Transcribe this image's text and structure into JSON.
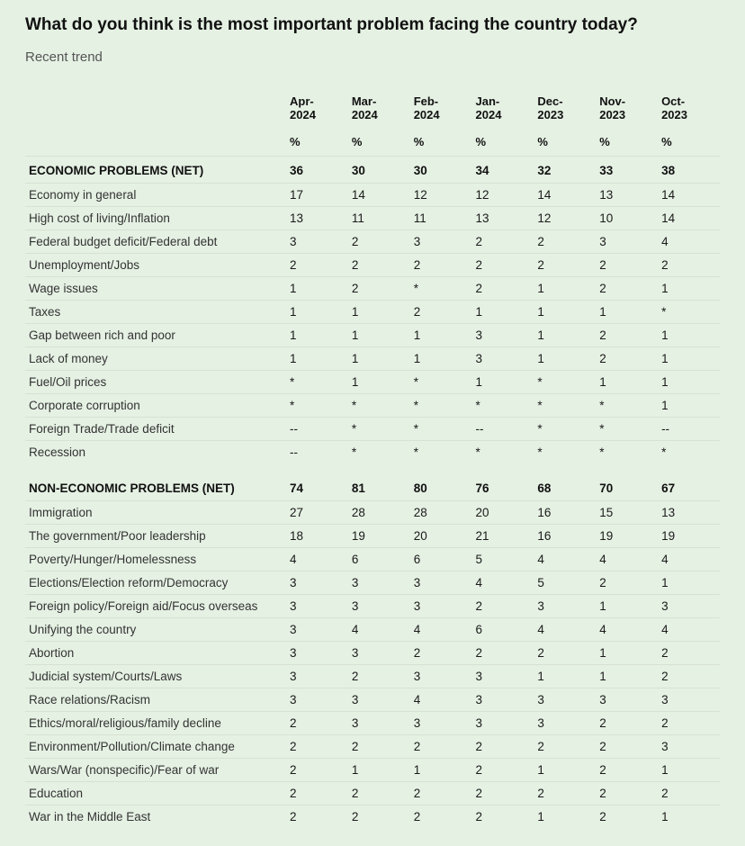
{
  "title": "What do you think is the most important problem facing the country today?",
  "subtitle": "Recent trend",
  "percent_label": "%",
  "columns": [
    "Apr-2024",
    "Mar-2024",
    "Feb-2024",
    "Jan-2024",
    "Dec-2023",
    "Nov-2023",
    "Oct-2023"
  ],
  "sections": [
    {
      "label": "ECONOMIC PROBLEMS (NET)",
      "totals": [
        "36",
        "30",
        "30",
        "34",
        "32",
        "33",
        "38"
      ],
      "rows": [
        {
          "label": "Economy in general",
          "v": [
            "17",
            "14",
            "12",
            "12",
            "14",
            "13",
            "14"
          ]
        },
        {
          "label": "High cost of living/Inflation",
          "v": [
            "13",
            "11",
            "11",
            "13",
            "12",
            "10",
            "14"
          ]
        },
        {
          "label": "Federal budget deficit/Federal debt",
          "v": [
            "3",
            "2",
            "3",
            "2",
            "2",
            "3",
            "4"
          ]
        },
        {
          "label": "Unemployment/Jobs",
          "v": [
            "2",
            "2",
            "2",
            "2",
            "2",
            "2",
            "2"
          ]
        },
        {
          "label": "Wage issues",
          "v": [
            "1",
            "2",
            "*",
            "2",
            "1",
            "2",
            "1"
          ]
        },
        {
          "label": "Taxes",
          "v": [
            "1",
            "1",
            "2",
            "1",
            "1",
            "1",
            "*"
          ]
        },
        {
          "label": "Gap between rich and poor",
          "v": [
            "1",
            "1",
            "1",
            "3",
            "1",
            "2",
            "1"
          ]
        },
        {
          "label": "Lack of money",
          "v": [
            "1",
            "1",
            "1",
            "3",
            "1",
            "2",
            "1"
          ]
        },
        {
          "label": "Fuel/Oil prices",
          "v": [
            "*",
            "1",
            "*",
            "1",
            "*",
            "1",
            "1"
          ]
        },
        {
          "label": "Corporate corruption",
          "v": [
            "*",
            "*",
            "*",
            "*",
            "*",
            "*",
            "1"
          ]
        },
        {
          "label": "Foreign Trade/Trade deficit",
          "v": [
            "--",
            "*",
            "*",
            "--",
            "*",
            "*",
            "--"
          ]
        },
        {
          "label": "Recession",
          "v": [
            "--",
            "*",
            "*",
            "*",
            "*",
            "*",
            "*"
          ]
        }
      ]
    },
    {
      "label": "NON-ECONOMIC PROBLEMS (NET)",
      "totals": [
        "74",
        "81",
        "80",
        "76",
        "68",
        "70",
        "67"
      ],
      "rows": [
        {
          "label": "Immigration",
          "v": [
            "27",
            "28",
            "28",
            "20",
            "16",
            "15",
            "13"
          ]
        },
        {
          "label": "The government/Poor leadership",
          "v": [
            "18",
            "19",
            "20",
            "21",
            "16",
            "19",
            "19"
          ]
        },
        {
          "label": "Poverty/Hunger/Homelessness",
          "v": [
            "4",
            "6",
            "6",
            "5",
            "4",
            "4",
            "4"
          ]
        },
        {
          "label": "Elections/Election reform/Democracy",
          "v": [
            "3",
            "3",
            "3",
            "4",
            "5",
            "2",
            "1"
          ]
        },
        {
          "label": "Foreign policy/Foreign aid/Focus overseas",
          "v": [
            "3",
            "3",
            "3",
            "2",
            "3",
            "1",
            "3"
          ]
        },
        {
          "label": "Unifying the country",
          "v": [
            "3",
            "4",
            "4",
            "6",
            "4",
            "4",
            "4"
          ]
        },
        {
          "label": "Abortion",
          "v": [
            "3",
            "3",
            "2",
            "2",
            "2",
            "1",
            "2"
          ]
        },
        {
          "label": "Judicial system/Courts/Laws",
          "v": [
            "3",
            "2",
            "3",
            "3",
            "1",
            "1",
            "2"
          ]
        },
        {
          "label": "Race relations/Racism",
          "v": [
            "3",
            "3",
            "4",
            "3",
            "3",
            "3",
            "3"
          ]
        },
        {
          "label": "Ethics/moral/religious/family decline",
          "v": [
            "2",
            "3",
            "3",
            "3",
            "3",
            "2",
            "2"
          ]
        },
        {
          "label": "Environment/Pollution/Climate change",
          "v": [
            "2",
            "2",
            "2",
            "2",
            "2",
            "2",
            "3"
          ]
        },
        {
          "label": "Wars/War (nonspecific)/Fear of war",
          "v": [
            "2",
            "1",
            "1",
            "2",
            "1",
            "2",
            "1"
          ]
        },
        {
          "label": "Education",
          "v": [
            "2",
            "2",
            "2",
            "2",
            "2",
            "2",
            "2"
          ]
        },
        {
          "label": "War in the Middle East",
          "v": [
            "2",
            "2",
            "2",
            "2",
            "1",
            "2",
            "1"
          ]
        }
      ]
    }
  ]
}
